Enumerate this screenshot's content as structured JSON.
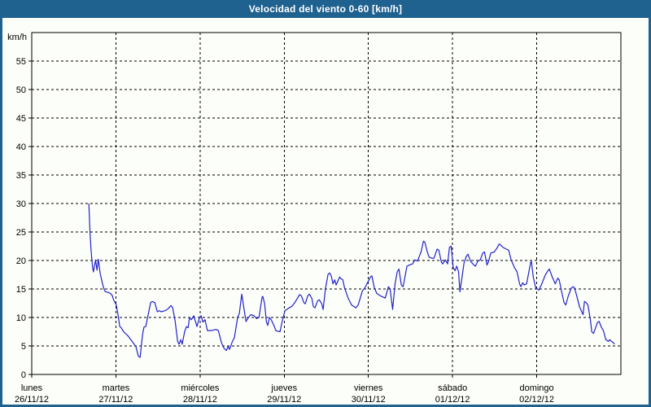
{
  "colors": {
    "title_bar": "#1f618f",
    "frame": "#1f618f",
    "background": "#fcfef9",
    "line": "#2222cc",
    "grid": "#000000",
    "title_text": "#ffffff"
  },
  "chart_data": {
    "type": "line",
    "title": "Velocidad del viento 0-60 [km/h]",
    "ylabel": "km/h",
    "ylim": [
      0,
      60
    ],
    "y_ticks": [
      0,
      5,
      10,
      15,
      20,
      25,
      30,
      35,
      40,
      45,
      50,
      55
    ],
    "grid": "dashed",
    "legend": "none",
    "x_axis": {
      "unit": "hours since lunes 00:00",
      "range_hours": [
        0,
        168
      ],
      "days": [
        {
          "name": "lunes",
          "date": "26/11/12"
        },
        {
          "name": "martes",
          "date": "27/11/12"
        },
        {
          "name": "miércoles",
          "date": "28/11/12"
        },
        {
          "name": "jueves",
          "date": "29/11/12"
        },
        {
          "name": "viernes",
          "date": "30/11/12"
        },
        {
          "name": "sábado",
          "date": "01/12/12"
        },
        {
          "name": "domingo",
          "date": "02/12/12"
        }
      ]
    },
    "series": [
      {
        "name": "Velocidad del viento",
        "color": "#2222cc",
        "points": [
          [
            16.3,
            30
          ],
          [
            16.6,
            25.3
          ],
          [
            16.9,
            22
          ],
          [
            17.3,
            19
          ],
          [
            17.6,
            18
          ],
          [
            18.2,
            20.1
          ],
          [
            18.6,
            18.3
          ],
          [
            19,
            20.2
          ],
          [
            19.5,
            17.8
          ],
          [
            20,
            16.4
          ],
          [
            20.4,
            15.4
          ],
          [
            20.8,
            14.7
          ],
          [
            21.1,
            14.5
          ],
          [
            21.8,
            14.4
          ],
          [
            22.5,
            14.2
          ],
          [
            23,
            13.8
          ],
          [
            23.4,
            13
          ],
          [
            24.1,
            12.2
          ],
          [
            24.6,
            10.5
          ],
          [
            25.1,
            8.4
          ],
          [
            25.5,
            8.2
          ],
          [
            26.2,
            7.5
          ],
          [
            27.4,
            6.8
          ],
          [
            28.6,
            5.8
          ],
          [
            29.7,
            4.9
          ],
          [
            30.4,
            3.2
          ],
          [
            30.9,
            3
          ],
          [
            31.6,
            7
          ],
          [
            32,
            8.3
          ],
          [
            32.5,
            8.4
          ],
          [
            33.2,
            10.5
          ],
          [
            33.9,
            12.6
          ],
          [
            34.4,
            12.8
          ],
          [
            35.1,
            12.6
          ],
          [
            35.8,
            11
          ],
          [
            36.4,
            11.2
          ],
          [
            36.9,
            11
          ],
          [
            38.1,
            11.2
          ],
          [
            39,
            11.6
          ],
          [
            39.7,
            12.1
          ],
          [
            40.2,
            11.7
          ],
          [
            40.9,
            9.3
          ],
          [
            41.6,
            5.8
          ],
          [
            42,
            5.3
          ],
          [
            42.5,
            6.1
          ],
          [
            42.9,
            5.3
          ],
          [
            43.6,
            7.5
          ],
          [
            44.1,
            8.4
          ],
          [
            44.6,
            8.2
          ],
          [
            45,
            10
          ],
          [
            45.5,
            9.6
          ],
          [
            46.2,
            10.3
          ],
          [
            47.1,
            8.4
          ],
          [
            47.8,
            9.9
          ],
          [
            48.3,
            10.3
          ],
          [
            48.8,
            9.2
          ],
          [
            49.4,
            9.6
          ],
          [
            50.1,
            7.7
          ],
          [
            51.3,
            7.7
          ],
          [
            52.5,
            7.9
          ],
          [
            53.2,
            7.7
          ],
          [
            54.1,
            5.6
          ],
          [
            54.8,
            4.6
          ],
          [
            55.5,
            4.2
          ],
          [
            56,
            4.9
          ],
          [
            56.4,
            4.4
          ],
          [
            57.1,
            5.6
          ],
          [
            57.8,
            6.5
          ],
          [
            58.7,
            10
          ],
          [
            59.2,
            10.7
          ],
          [
            59.9,
            14.1
          ],
          [
            60.6,
            11.2
          ],
          [
            61.1,
            9.3
          ],
          [
            61.8,
            10
          ],
          [
            62.5,
            10.5
          ],
          [
            63.4,
            10.3
          ],
          [
            64.1,
            9.8
          ],
          [
            64.8,
            10
          ],
          [
            65.7,
            13.6
          ],
          [
            65.9,
            13.7
          ],
          [
            66.4,
            12.4
          ],
          [
            66.9,
            9.3
          ],
          [
            67.3,
            8.6
          ],
          [
            67.8,
            10
          ],
          [
            68.3,
            9.6
          ],
          [
            69.2,
            8.4
          ],
          [
            69.6,
            7.7
          ],
          [
            70.1,
            7.6
          ],
          [
            70.8,
            7.5
          ],
          [
            71.3,
            9
          ],
          [
            72.2,
            11.2
          ],
          [
            72.7,
            11.4
          ],
          [
            73.4,
            11.7
          ],
          [
            74.1,
            11.9
          ],
          [
            75,
            12.6
          ],
          [
            75.7,
            13.3
          ],
          [
            76.4,
            14
          ],
          [
            76.9,
            13.8
          ],
          [
            77.6,
            12.6
          ],
          [
            78,
            12.4
          ],
          [
            78.7,
            13.8
          ],
          [
            79.2,
            14.1
          ],
          [
            79.9,
            13.3
          ],
          [
            80.3,
            11.9
          ],
          [
            80.8,
            11.7
          ],
          [
            81.5,
            12.9
          ],
          [
            82,
            13.1
          ],
          [
            82.7,
            12.4
          ],
          [
            83.1,
            11.4
          ],
          [
            83.8,
            15.2
          ],
          [
            84.5,
            17.6
          ],
          [
            85,
            17.8
          ],
          [
            85.4,
            17.3
          ],
          [
            85.9,
            15.9
          ],
          [
            86.4,
            16.6
          ],
          [
            86.8,
            15.7
          ],
          [
            87.8,
            17.1
          ],
          [
            88.2,
            16.8
          ],
          [
            88.7,
            16.6
          ],
          [
            89.2,
            15.2
          ],
          [
            90.3,
            13.3
          ],
          [
            91.2,
            12.2
          ],
          [
            92.4,
            11.7
          ],
          [
            93.1,
            12.2
          ],
          [
            94.3,
            14.7
          ],
          [
            95,
            15.2
          ],
          [
            96.6,
            17.1
          ],
          [
            97,
            17.3
          ],
          [
            97.7,
            15.2
          ],
          [
            98.4,
            14.2
          ],
          [
            99.4,
            13.8
          ],
          [
            100.1,
            13.6
          ],
          [
            100.8,
            13.4
          ],
          [
            101.7,
            15.4
          ],
          [
            102.2,
            15
          ],
          [
            102.9,
            11.4
          ],
          [
            103.6,
            15.9
          ],
          [
            104.2,
            18
          ],
          [
            104.7,
            18.5
          ],
          [
            105.4,
            15.7
          ],
          [
            105.9,
            15.4
          ],
          [
            107,
            19
          ],
          [
            107.7,
            19.2
          ],
          [
            108.6,
            19.4
          ],
          [
            109.3,
            20.1
          ],
          [
            110,
            19.9
          ],
          [
            111,
            21.5
          ],
          [
            111.7,
            23.4
          ],
          [
            112.1,
            23.2
          ],
          [
            112.8,
            21.5
          ],
          [
            113.3,
            20.6
          ],
          [
            114,
            20.4
          ],
          [
            114.7,
            20.4
          ],
          [
            115.6,
            22
          ],
          [
            116.1,
            21.8
          ],
          [
            116.8,
            19.7
          ],
          [
            117.2,
            19.4
          ],
          [
            117.9,
            20.1
          ],
          [
            118.6,
            19.4
          ],
          [
            119.1,
            22.3
          ],
          [
            119.6,
            22.5
          ],
          [
            120.2,
            18.7
          ],
          [
            120.7,
            18.2
          ],
          [
            121.2,
            19
          ],
          [
            121.7,
            18
          ],
          [
            122.1,
            14.5
          ],
          [
            122.8,
            17.5
          ],
          [
            123.3,
            19.7
          ],
          [
            124,
            20.8
          ],
          [
            124.4,
            21.1
          ],
          [
            125.1,
            19.9
          ],
          [
            126.1,
            19.2
          ],
          [
            126.5,
            19
          ],
          [
            127.2,
            19.9
          ],
          [
            127.9,
            20.1
          ],
          [
            128.6,
            21.3
          ],
          [
            129.1,
            21.5
          ],
          [
            129.8,
            19.2
          ],
          [
            130.2,
            19.7
          ],
          [
            130.9,
            21.3
          ],
          [
            131.9,
            21.5
          ],
          [
            132.6,
            22.1
          ],
          [
            133.3,
            22.9
          ],
          [
            133.7,
            22.7
          ],
          [
            134.4,
            22.3
          ],
          [
            135.3,
            22
          ],
          [
            136,
            21.8
          ],
          [
            136.7,
            20.1
          ],
          [
            137.7,
            18.7
          ],
          [
            138.4,
            18
          ],
          [
            139.1,
            15.9
          ],
          [
            139.5,
            15.4
          ],
          [
            140,
            16.1
          ],
          [
            140.4,
            15.7
          ],
          [
            141.1,
            15.9
          ],
          [
            142.3,
            19.7
          ],
          [
            142.5,
            19.8
          ],
          [
            143,
            17.1
          ],
          [
            143.7,
            15.2
          ],
          [
            144.6,
            14.8
          ],
          [
            145.3,
            15.7
          ],
          [
            146.5,
            17.5
          ],
          [
            147.2,
            18.2
          ],
          [
            147.6,
            18.5
          ],
          [
            148.3,
            17.3
          ],
          [
            149.3,
            15.9
          ],
          [
            150,
            16.9
          ],
          [
            150.4,
            16.6
          ],
          [
            151.1,
            14.5
          ],
          [
            151.8,
            12.6
          ],
          [
            152.3,
            12.2
          ],
          [
            153,
            13.8
          ],
          [
            153.9,
            15.2
          ],
          [
            154.4,
            15.4
          ],
          [
            154.8,
            15.2
          ],
          [
            155.5,
            13.6
          ],
          [
            156.2,
            11.9
          ],
          [
            156.7,
            11.2
          ],
          [
            157.2,
            10.5
          ],
          [
            157.6,
            12.8
          ],
          [
            158.1,
            12.6
          ],
          [
            158.6,
            12.2
          ],
          [
            159.3,
            9.6
          ],
          [
            159.7,
            7.5
          ],
          [
            160.2,
            7.2
          ],
          [
            160.9,
            8.4
          ],
          [
            161.3,
            9.1
          ],
          [
            161.8,
            9.3
          ],
          [
            162.5,
            8.2
          ],
          [
            163,
            7.7
          ],
          [
            163.7,
            6.1
          ],
          [
            164.4,
            5.8
          ],
          [
            164.8,
            6.1
          ],
          [
            165.3,
            5.8
          ],
          [
            165.8,
            5.6
          ],
          [
            166.2,
            5.3
          ]
        ]
      }
    ]
  }
}
